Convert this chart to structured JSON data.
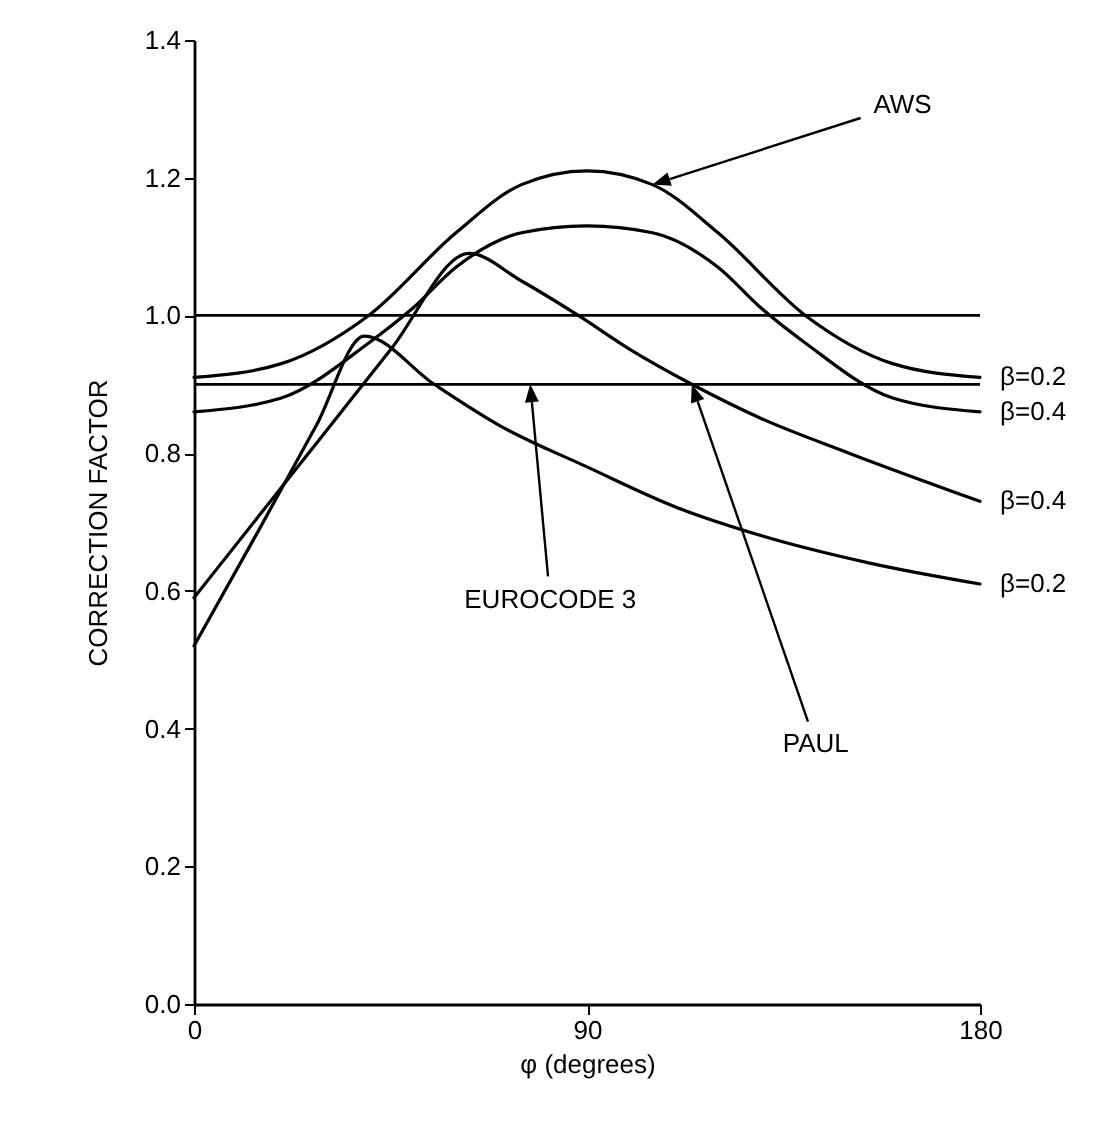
{
  "chart_data": {
    "type": "line",
    "xlabel": "φ (degrees)",
    "ylabel": "CORRECTION FACTOR",
    "xlim": [
      0,
      180
    ],
    "ylim": [
      0,
      1.4
    ],
    "xticks": [
      0,
      90,
      180
    ],
    "yticks": [
      {
        "value": 0,
        "label": "0.0"
      },
      0.2,
      0.4,
      0.6,
      0.8,
      {
        "value": 1,
        "label": "1.0"
      },
      1.2,
      1.4
    ],
    "grid": false,
    "legend": false,
    "line_style": "solid",
    "series": [
      {
        "name": "β=0.2",
        "color": "#000000",
        "x": [
          0,
          20,
          40,
          60,
          75,
          90,
          105,
          120,
          140,
          160,
          180
        ],
        "values": [
          0.91,
          0.93,
          1.0,
          1.12,
          1.19,
          1.21,
          1.19,
          1.12,
          1.0,
          0.93,
          0.91
        ]
      },
      {
        "name": "β=0.4",
        "color": "#000000",
        "x": [
          0,
          20,
          40,
          50,
          60,
          75,
          90,
          105,
          120,
          130,
          140,
          160,
          180
        ],
        "values": [
          0.86,
          0.88,
          0.96,
          1.01,
          1.07,
          1.12,
          1.13,
          1.12,
          1.07,
          1.01,
          0.96,
          0.88,
          0.86
        ]
      },
      {
        "name": "β=0.4",
        "color": "#000000",
        "x": [
          0,
          15,
          30,
          45,
          63,
          75,
          88,
          100,
          114,
          130,
          150,
          180
        ],
        "values": [
          0.59,
          0.71,
          0.83,
          0.95,
          1.09,
          1.05,
          1.0,
          0.95,
          0.9,
          0.85,
          0.8,
          0.73
        ]
      },
      {
        "name": "β=0.2",
        "color": "#000000",
        "x": [
          0,
          15,
          28,
          39,
          55,
          70,
          90,
          111,
          130,
          155,
          180
        ],
        "values": [
          0.52,
          0.69,
          0.84,
          0.97,
          0.9,
          0.84,
          0.78,
          0.72,
          0.68,
          0.64,
          0.61
        ]
      }
    ],
    "ref_lines": [
      {
        "axis": "y",
        "value": 1.0,
        "color": "#000000"
      },
      {
        "axis": "y",
        "value": 0.9,
        "color": "#000000"
      }
    ],
    "annotations": [
      {
        "text": "AWS",
        "x": 105,
        "y": 1.19
      },
      {
        "text": "EUROCODE 3",
        "x": 77,
        "y": 0.9
      },
      {
        "text": "PAUL",
        "x": 114,
        "y": 0.9
      }
    ]
  }
}
